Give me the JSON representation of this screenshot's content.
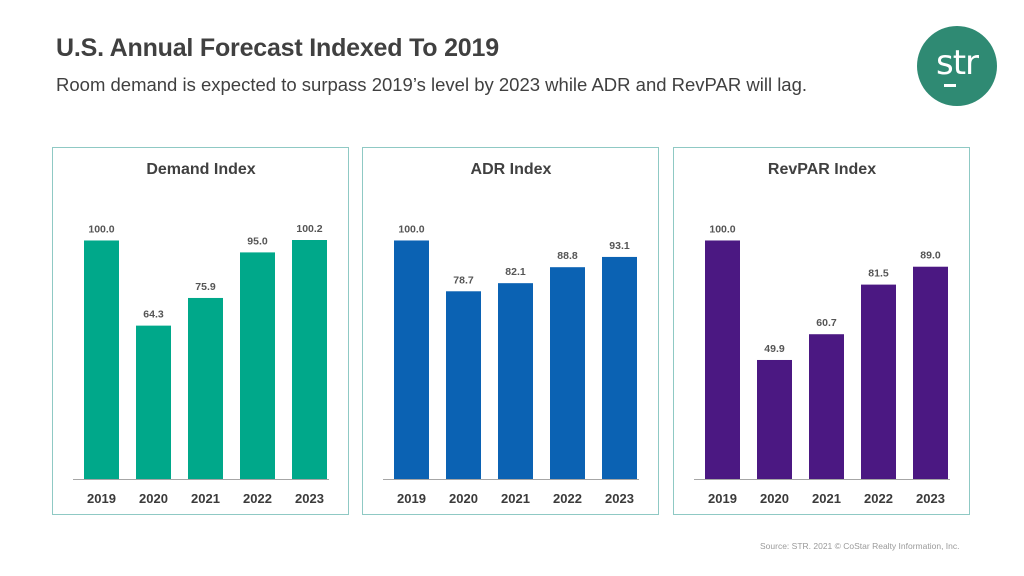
{
  "header": {
    "title": "U.S. Annual Forecast Indexed To 2019",
    "subtitle": "Room demand is expected to surpass 2019’s level by 2023 while ADR and RevPAR will lag.",
    "logo_text": "str"
  },
  "footer": {
    "source": "Source: STR. 2021 © CoStar Realty Information, Inc."
  },
  "colors": {
    "demand": "#00a88a",
    "adr": "#0b62b3",
    "revpar": "#4b1882",
    "panel_border": "#8fc9c4",
    "logo": "#2f8a73"
  },
  "chart_data": [
    {
      "type": "bar",
      "title": "Demand Index",
      "categories": [
        "2019",
        "2020",
        "2021",
        "2022",
        "2023"
      ],
      "values": [
        100.0,
        64.3,
        75.9,
        95.0,
        100.2
      ],
      "labels": [
        "100.0",
        "64.3",
        "75.9",
        "95.0",
        "100.2"
      ],
      "xlabel": "",
      "ylabel": "",
      "ylim": [
        0,
        100.2
      ],
      "grid": false,
      "color_key": "demand"
    },
    {
      "type": "bar",
      "title": "ADR Index",
      "categories": [
        "2019",
        "2020",
        "2021",
        "2022",
        "2023"
      ],
      "values": [
        100.0,
        78.7,
        82.1,
        88.8,
        93.1
      ],
      "labels": [
        "100.0",
        "78.7",
        "82.1",
        "88.8",
        "93.1"
      ],
      "xlabel": "",
      "ylabel": "",
      "ylim": [
        0,
        100.2
      ],
      "grid": false,
      "color_key": "adr"
    },
    {
      "type": "bar",
      "title": "RevPAR Index",
      "categories": [
        "2019",
        "2020",
        "2021",
        "2022",
        "2023"
      ],
      "values": [
        100.0,
        49.9,
        60.7,
        81.5,
        89.0
      ],
      "labels": [
        "100.0",
        "49.9",
        "60.7",
        "81.5",
        "89.0"
      ],
      "xlabel": "",
      "ylabel": "",
      "ylim": [
        0,
        100.2
      ],
      "grid": false,
      "color_key": "revpar"
    }
  ]
}
